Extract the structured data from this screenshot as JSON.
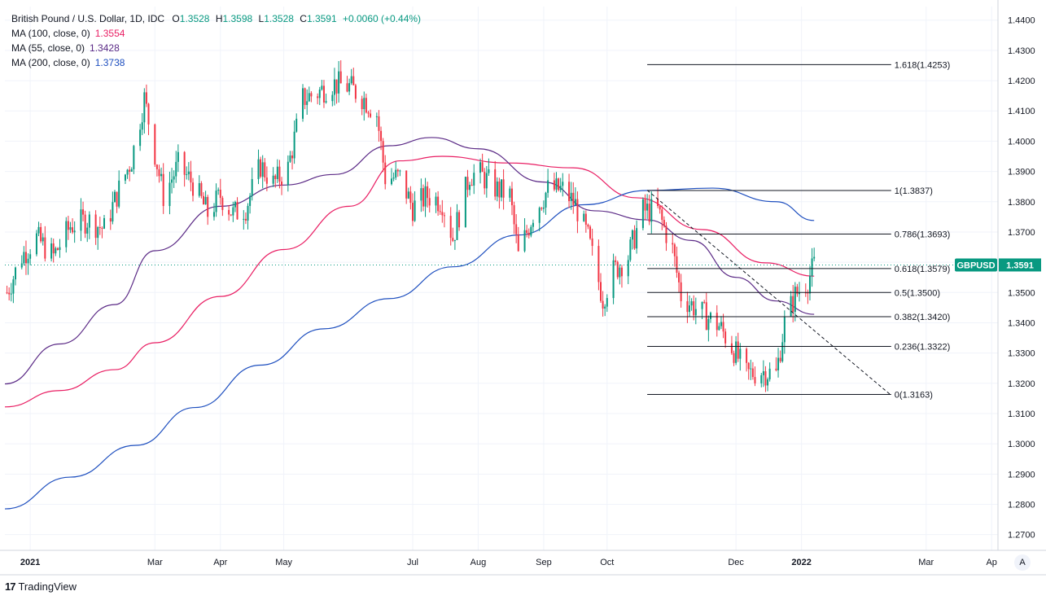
{
  "legend": {
    "title": "British Pound / U.S. Dollar, 1D, IDC",
    "ohlc": {
      "o_label": "O",
      "o": "1.3528",
      "h_label": "H",
      "h": "1.3598",
      "l_label": "L",
      "l": "1.3528",
      "c_label": "C",
      "c": "1.3591",
      "change": "+0.0060 (+0.44%)"
    },
    "ma100": {
      "label": "MA (100, close, 0)",
      "value": "1.3554"
    },
    "ma55": {
      "label": "MA (55, close, 0)",
      "value": "1.3428"
    },
    "ma200": {
      "label": "MA (200, close, 0)",
      "value": "1.3738"
    }
  },
  "branding": {
    "text": "TradingView"
  },
  "auto_button": "A",
  "price_tag": {
    "symbol": "GBPUSD",
    "value": "1.3591"
  },
  "colors": {
    "up": "#089981",
    "down": "#f23645",
    "ma100": "#e91e63",
    "ma55": "#5b2a86",
    "ma200": "#1e4fbf",
    "grid": "#f0f3fa",
    "fib": "#131722"
  },
  "chart_data": {
    "type": "candlestick",
    "symbol": "GBPUSD",
    "timeframe": "1D",
    "y_ticks": [
      "1.4400",
      "1.4300",
      "1.4200",
      "1.4100",
      "1.4000",
      "1.3900",
      "1.3800",
      "1.3700",
      "1.3600",
      "1.3500",
      "1.3400",
      "1.3300",
      "1.3200",
      "1.3100",
      "1.3000",
      "1.2900",
      "1.2800",
      "1.2700"
    ],
    "ylim": [
      1.2648,
      1.4445
    ],
    "x_ticks": [
      {
        "label": "2021",
        "date": "2021-01-01",
        "bold": true
      },
      {
        "label": "Mar",
        "date": "2021-03-01"
      },
      {
        "label": "Apr",
        "date": "2021-04-01"
      },
      {
        "label": "May",
        "date": "2021-05-01"
      },
      {
        "label": "Jul",
        "date": "2021-07-01"
      },
      {
        "label": "Aug",
        "date": "2021-08-01"
      },
      {
        "label": "Sep",
        "date": "2021-09-01"
      },
      {
        "label": "Oct",
        "date": "2021-10-01"
      },
      {
        "label": "Dec",
        "date": "2021-12-01"
      },
      {
        "label": "2022",
        "date": "2022-01-01",
        "bold": true
      },
      {
        "label": "Mar",
        "date": "2022-03-01"
      },
      {
        "label": "Ap",
        "date": "2022-04-01"
      }
    ],
    "xlim": [
      "2020-12-20",
      "2022-04-04"
    ],
    "close_path": [
      [
        "2020-12-21",
        1.35
      ],
      [
        "2020-12-28",
        1.362
      ],
      [
        "2021-01-04",
        1.368
      ],
      [
        "2021-01-12",
        1.362
      ],
      [
        "2021-01-20",
        1.372
      ],
      [
        "2021-01-28",
        1.374
      ],
      [
        "2021-02-05",
        1.371
      ],
      [
        "2021-02-12",
        1.384
      ],
      [
        "2021-02-18",
        1.394
      ],
      [
        "2021-02-24",
        1.414
      ],
      [
        "2021-03-01",
        1.396
      ],
      [
        "2021-03-05",
        1.382
      ],
      [
        "2021-03-12",
        1.392
      ],
      [
        "2021-03-19",
        1.386
      ],
      [
        "2021-03-26",
        1.376
      ],
      [
        "2021-04-01",
        1.382
      ],
      [
        "2021-04-07",
        1.376
      ],
      [
        "2021-04-13",
        1.378
      ],
      [
        "2021-04-20",
        1.392
      ],
      [
        "2021-04-26",
        1.386
      ],
      [
        "2021-05-03",
        1.391
      ],
      [
        "2021-05-10",
        1.414
      ],
      [
        "2021-05-17",
        1.416
      ],
      [
        "2021-05-24",
        1.419
      ],
      [
        "2021-06-01",
        1.418
      ],
      [
        "2021-06-08",
        1.414
      ],
      [
        "2021-06-14",
        1.409
      ],
      [
        "2021-06-18",
        1.388
      ],
      [
        "2021-06-25",
        1.388
      ],
      [
        "2021-07-01",
        1.378
      ],
      [
        "2021-07-08",
        1.382
      ],
      [
        "2021-07-15",
        1.38
      ],
      [
        "2021-07-20",
        1.368
      ],
      [
        "2021-07-28",
        1.389
      ],
      [
        "2021-08-02",
        1.389
      ],
      [
        "2021-08-10",
        1.384
      ],
      [
        "2021-08-16",
        1.382
      ],
      [
        "2021-08-20",
        1.362
      ],
      [
        "2021-08-27",
        1.376
      ],
      [
        "2021-09-03",
        1.384
      ],
      [
        "2021-09-10",
        1.384
      ],
      [
        "2021-09-16",
        1.379
      ],
      [
        "2021-09-22",
        1.368
      ],
      [
        "2021-09-29",
        1.348
      ],
      [
        "2021-10-04",
        1.357
      ],
      [
        "2021-10-11",
        1.362
      ],
      [
        "2021-10-18",
        1.377
      ],
      [
        "2021-10-25",
        1.377
      ],
      [
        "2021-11-01",
        1.364
      ],
      [
        "2021-11-05",
        1.349
      ],
      [
        "2021-11-10",
        1.346
      ],
      [
        "2021-11-15",
        1.343
      ],
      [
        "2021-11-23",
        1.339
      ],
      [
        "2021-11-30",
        1.331
      ],
      [
        "2021-12-06",
        1.323
      ],
      [
        "2021-12-13",
        1.324
      ],
      [
        "2021-12-20",
        1.323
      ],
      [
        "2021-12-24",
        1.34
      ],
      [
        "2021-12-29",
        1.349
      ],
      [
        "2022-01-04",
        1.354
      ],
      [
        "2022-01-07",
        1.359
      ]
    ],
    "moving_averages": [
      {
        "name": "MA (100, close, 0)",
        "color": "#e91e63",
        "points": [
          [
            "2020-12-20",
            1.3122
          ],
          [
            "2021-01-15",
            1.3176
          ],
          [
            "2021-02-10",
            1.3245
          ],
          [
            "2021-03-01",
            1.3334
          ],
          [
            "2021-04-01",
            1.3487
          ],
          [
            "2021-05-01",
            1.3642
          ],
          [
            "2021-06-01",
            1.3785
          ],
          [
            "2021-06-25",
            1.3935
          ],
          [
            "2021-07-15",
            1.395
          ],
          [
            "2021-08-15",
            1.3928
          ],
          [
            "2021-09-15",
            1.3912
          ],
          [
            "2021-10-15",
            1.3813
          ],
          [
            "2021-11-15",
            1.3708
          ],
          [
            "2021-12-15",
            1.3598
          ],
          [
            "2022-01-07",
            1.3554
          ]
        ]
      },
      {
        "name": "MA (55, close, 0)",
        "color": "#5b2a86",
        "points": [
          [
            "2020-12-20",
            1.3198
          ],
          [
            "2021-01-15",
            1.333
          ],
          [
            "2021-02-10",
            1.346
          ],
          [
            "2021-03-01",
            1.3638
          ],
          [
            "2021-04-01",
            1.3785
          ],
          [
            "2021-05-01",
            1.3855
          ],
          [
            "2021-05-25",
            1.389
          ],
          [
            "2021-06-20",
            1.3985
          ],
          [
            "2021-07-10",
            1.4012
          ],
          [
            "2021-08-01",
            1.3975
          ],
          [
            "2021-09-01",
            1.3865
          ],
          [
            "2021-09-25",
            1.377
          ],
          [
            "2021-10-20",
            1.374
          ],
          [
            "2021-11-10",
            1.3672
          ],
          [
            "2021-12-01",
            1.355
          ],
          [
            "2021-12-20",
            1.3472
          ],
          [
            "2022-01-07",
            1.3428
          ]
        ]
      },
      {
        "name": "MA (200, close, 0)",
        "color": "#1e4fbf",
        "points": [
          [
            "2020-12-20",
            1.2785
          ],
          [
            "2021-01-20",
            1.289
          ],
          [
            "2021-02-20",
            1.2995
          ],
          [
            "2021-03-20",
            1.312
          ],
          [
            "2021-04-20",
            1.326
          ],
          [
            "2021-05-20",
            1.338
          ],
          [
            "2021-06-20",
            1.348
          ],
          [
            "2021-07-20",
            1.3585
          ],
          [
            "2021-08-20",
            1.369
          ],
          [
            "2021-09-20",
            1.379
          ],
          [
            "2021-10-20",
            1.3837
          ],
          [
            "2021-11-20",
            1.3845
          ],
          [
            "2021-12-20",
            1.38
          ],
          [
            "2022-01-07",
            1.3738
          ]
        ]
      }
    ],
    "fibonacci": {
      "start_date": "2021-10-20",
      "label_date": "2022-02-14",
      "end_date": "2022-02-12",
      "levels": [
        {
          "label": "1.618(1.4253)",
          "price": 1.4253
        },
        {
          "label": "1(1.3837)",
          "price": 1.3837
        },
        {
          "label": "0.786(1.3693)",
          "price": 1.3693
        },
        {
          "label": "0.618(1.3579)",
          "price": 1.3579
        },
        {
          "label": "0.5(1.3500)",
          "price": 1.35
        },
        {
          "label": "0.382(1.3420)",
          "price": 1.342
        },
        {
          "label": "0.236(1.3322)",
          "price": 1.3322
        },
        {
          "label": "0(1.3163)",
          "price": 1.3163
        }
      ]
    },
    "trendline": {
      "style": "dashed",
      "start": [
        "2021-10-20",
        1.3838
      ],
      "end": [
        "2022-02-12",
        1.3163
      ]
    },
    "last_price": 1.3591
  }
}
